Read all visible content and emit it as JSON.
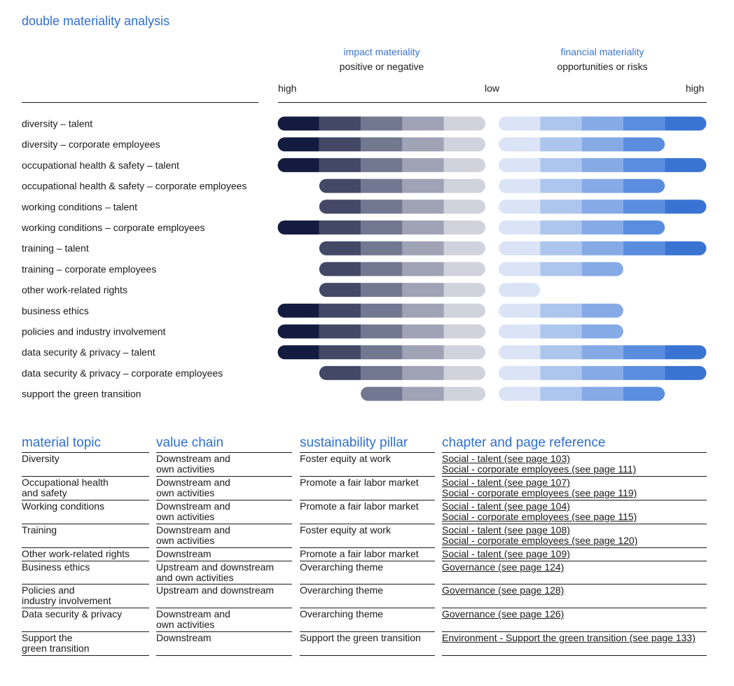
{
  "title": "double materiality analysis",
  "headers": {
    "impact_title": "impact materiality",
    "impact_sub": "positive or negative",
    "financial_title": "financial materiality",
    "financial_sub": "opportunities or risks"
  },
  "scale": {
    "high_left": "high",
    "low": "low",
    "high_right": "high"
  },
  "colors": {
    "impact": [
      "#131b3f",
      "#424866",
      "#737891",
      "#a0a3b5",
      "#d0d2dc"
    ],
    "financial": [
      "#dae4f6",
      "#adc6ee",
      "#85aae6",
      "#5b8ddf",
      "#3a74d3"
    ]
  },
  "chart_data": {
    "type": "bar",
    "title": "double materiality analysis",
    "impact_scale": {
      "min": 1,
      "max": 5,
      "direction": "high-to-low",
      "label": "impact materiality (positive or negative)"
    },
    "financial_scale": {
      "min": 1,
      "max": 5,
      "direction": "low-to-high",
      "label": "financial materiality (opportunities or risks)"
    },
    "categories": [
      "diversity – talent",
      "diversity – corporate employees",
      "occupational health & safety – talent",
      "occupational health & safety – corporate employees",
      "working conditions – talent",
      "working conditions – corporate employees",
      "training – talent",
      "training – corporate employees",
      "other work-related rights",
      "business ethics",
      "policies and industry involvement",
      "data security & privacy – talent",
      "data security & privacy – corporate employees",
      "support the green transition"
    ],
    "series": [
      {
        "name": "impact materiality",
        "values": [
          5,
          5,
          5,
          4,
          4,
          5,
          4,
          4,
          4,
          5,
          5,
          5,
          4,
          3
        ]
      },
      {
        "name": "financial materiality",
        "values": [
          5,
          4,
          5,
          4,
          5,
          4,
          5,
          3,
          1,
          3,
          3,
          5,
          5,
          4
        ]
      }
    ]
  },
  "table": {
    "headers": [
      "material topic",
      "value chain",
      "sustainability pillar",
      "chapter and page reference"
    ],
    "rows": [
      {
        "topic": "Diversity",
        "chain": "Downstream and\nown activities",
        "pillar": "Foster equity at work",
        "refs": [
          "Social - talent (see page 103)",
          "Social - corporate employees (see page 111)"
        ]
      },
      {
        "topic": "Occupational health\nand safety",
        "chain": "Downstream and\nown activities",
        "pillar": "Promote a fair labor market",
        "refs": [
          "Social - talent (see page 107)",
          "Social - corporate employees (see page 119)"
        ]
      },
      {
        "topic": "Working conditions",
        "chain": "Downstream and\nown activities",
        "pillar": "Promote a fair labor market",
        "refs": [
          "Social - talent (see page 104)",
          "Social - corporate employees (see page 115)"
        ]
      },
      {
        "topic": "Training",
        "chain": "Downstream and\nown activities",
        "pillar": "Foster equity at work",
        "refs": [
          "Social - talent (see page 108)",
          "Social - corporate employees (see page 120)"
        ]
      },
      {
        "topic": "Other work-related rights",
        "chain": "Downstream",
        "pillar": "Promote a fair labor market",
        "refs": [
          "Social - talent (see page 109)"
        ]
      },
      {
        "topic": "Business ethics",
        "chain": "Upstream and downstream\nand own activities",
        "pillar": "Overarching theme",
        "refs": [
          "Governance (see page 124)"
        ]
      },
      {
        "topic": "Policies and\nindustry involvement",
        "chain": "Upstream and downstream",
        "pillar": "Overarching theme",
        "refs": [
          "Governance (see page 128)"
        ]
      },
      {
        "topic": "Data security & privacy",
        "chain": "Downstream and\nown activities",
        "pillar": "Overarching theme",
        "refs": [
          "Governance (see page 126)"
        ]
      },
      {
        "topic": "Support the\ngreen transition",
        "chain": "Downstream",
        "pillar": "Support the green transition",
        "refs": [
          "Environment - Support the green transition (see page 133)"
        ]
      }
    ]
  }
}
